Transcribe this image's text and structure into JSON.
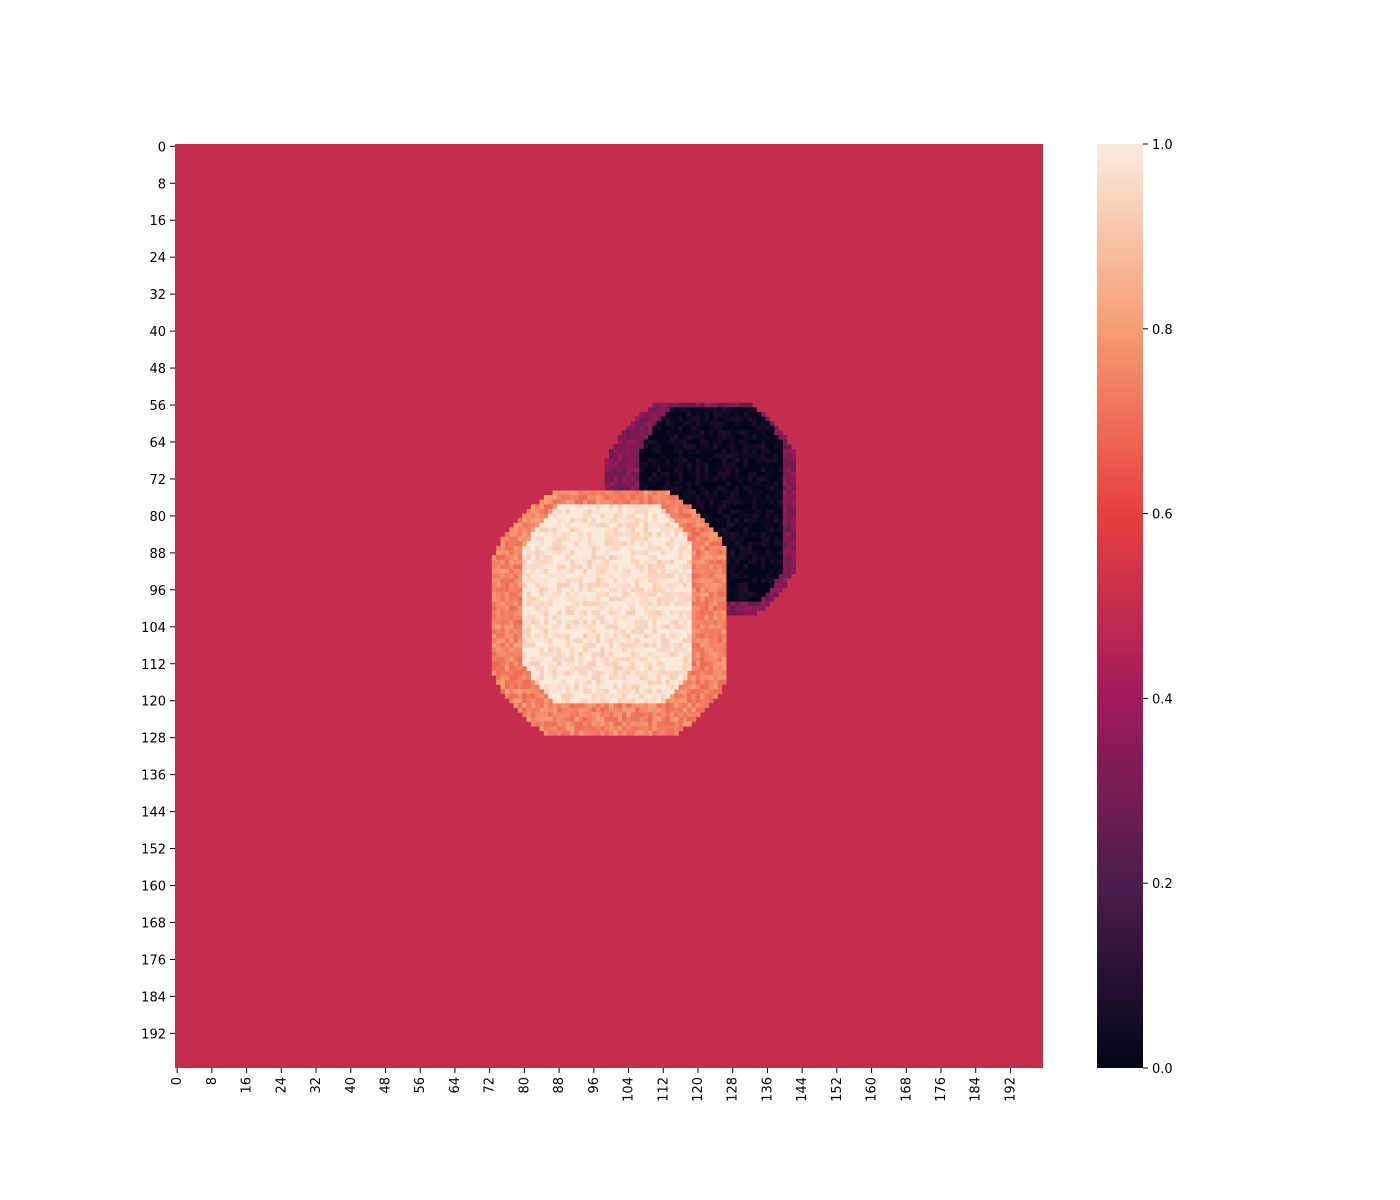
{
  "chart_data": {
    "type": "heatmap",
    "title": "",
    "xlabel": "",
    "ylabel": "",
    "grid_size": 200,
    "xlim": [
      0,
      200
    ],
    "ylim": [
      0,
      200
    ],
    "x_ticks": [
      "0",
      "8",
      "16",
      "24",
      "32",
      "40",
      "48",
      "56",
      "64",
      "72",
      "80",
      "88",
      "96",
      "104",
      "112",
      "120",
      "128",
      "136",
      "144",
      "152",
      "160",
      "168",
      "176",
      "184",
      "192"
    ],
    "y_ticks": [
      "0",
      "8",
      "16",
      "24",
      "32",
      "40",
      "48",
      "56",
      "64",
      "72",
      "80",
      "88",
      "96",
      "104",
      "112",
      "120",
      "128",
      "136",
      "144",
      "152",
      "160",
      "168",
      "176",
      "184",
      "192"
    ],
    "x_tick_rotation": "vertical",
    "background_value": 0.5,
    "colorbar": {
      "ticks": [
        "0.0",
        "0.2",
        "0.4",
        "0.6",
        "0.8",
        "1.0"
      ],
      "range": [
        0,
        1
      ],
      "colormap": "rocket",
      "colors": [
        "#03051a",
        "#4c1d4b",
        "#a11a5b",
        "#e83f3f",
        "#f69c73",
        "#faebdd"
      ],
      "placement": "right"
    },
    "regions": [
      {
        "name": "dark blob",
        "value": 0.02,
        "x_range": [
          107,
          140
        ],
        "y_range": [
          57,
          99
        ]
      },
      {
        "name": "dark blob fringe",
        "value": 0.32,
        "x_range": [
          99,
          143
        ],
        "y_range": [
          56,
          102
        ]
      },
      {
        "name": "bright blob",
        "value": 0.98,
        "x_range": [
          80,
          119
        ],
        "y_range": [
          78,
          121
        ]
      },
      {
        "name": "bright blob fringe",
        "value": 0.75,
        "x_range": [
          73,
          127
        ],
        "y_range": [
          75,
          128
        ]
      }
    ]
  }
}
